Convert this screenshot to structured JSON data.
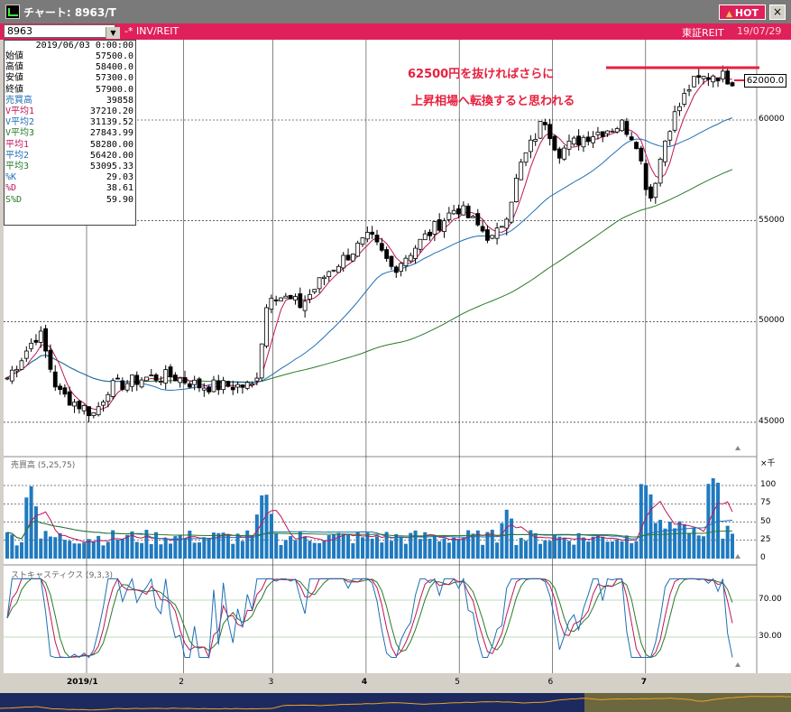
{
  "window": {
    "title": "チャート: 8963/T",
    "hot_label": "HOT",
    "close_label": "×"
  },
  "toolbar": {
    "symbol": "8963",
    "category": "-* INV/REIT",
    "exchange": "東証REIT",
    "date": "19/07/29"
  },
  "info_panel": {
    "datetime": "2019/06/03 0:00:00",
    "rows": [
      {
        "label": "始値",
        "value": "57500.0",
        "color": "#000000"
      },
      {
        "label": "高値",
        "value": "58400.0",
        "color": "#000000"
      },
      {
        "label": "安値",
        "value": "57300.0",
        "color": "#000000"
      },
      {
        "label": "終値",
        "value": "57900.0",
        "color": "#000000"
      },
      {
        "label": "売買高",
        "value": "39858",
        "color": "#1f6fb4"
      },
      {
        "label": "V平均1",
        "value": "37210.20",
        "color": "#c0145a"
      },
      {
        "label": "V平均2",
        "value": "31139.52",
        "color": "#1f6fb4"
      },
      {
        "label": "V平均3",
        "value": "27843.99",
        "color": "#2a7a2a"
      },
      {
        "label": "平均1",
        "value": "58280.00",
        "color": "#c0145a"
      },
      {
        "label": "平均2",
        "value": "56420.00",
        "color": "#1f6fb4"
      },
      {
        "label": "平均3",
        "value": "53095.33",
        "color": "#2a7a2a"
      },
      {
        "label": "%K",
        "value": "29.03",
        "color": "#1f6fb4"
      },
      {
        "label": "%D",
        "value": "38.61",
        "color": "#c0145a"
      },
      {
        "label": "S%D",
        "value": "59.90",
        "color": "#2a7a2a"
      }
    ]
  },
  "annotation": {
    "line1": "62500円を抜ければさらに",
    "line2": "上昇相場へ転換すると思われる",
    "price_tag": "62000.0"
  },
  "price_axis": {
    "labels": [
      "60000",
      "55000",
      "50000",
      "45000"
    ],
    "values": [
      60000,
      55000,
      50000,
      45000
    ]
  },
  "volume_panel": {
    "title": "売買高 (5,25,75)",
    "unit": "×千",
    "labels": [
      "100",
      "75",
      "50",
      "25",
      "0"
    ],
    "values": [
      100,
      75,
      50,
      25,
      0
    ]
  },
  "stoch_panel": {
    "title": "ストキャスティクス (9,3,3)",
    "labels": [
      "70.00",
      "30.00"
    ],
    "values": [
      70,
      30
    ]
  },
  "x_axis": {
    "labels": [
      "2019/1",
      "2",
      "3",
      "4",
      "5",
      "6",
      "7"
    ],
    "bold": [
      true,
      false,
      false,
      true,
      false,
      false,
      true
    ]
  },
  "colors": {
    "accent": "#e0205a",
    "ma_short": "#c0145a",
    "ma_mid": "#1f6fb4",
    "ma_long": "#2a7a2a",
    "volume_bar": "#1f7ac0",
    "annotation": "#e8203e"
  },
  "chart_data": {
    "type": "candlestick",
    "price_range": [
      44000,
      64000
    ],
    "resistance_level": 62500,
    "price_anchors": [
      {
        "month": 0.0,
        "value": 47200
      },
      {
        "month": 0.35,
        "value": 49500
      },
      {
        "month": 0.55,
        "value": 46500
      },
      {
        "month": 0.95,
        "value": 45400
      },
      {
        "month": 1.1,
        "value": 46700
      },
      {
        "month": 1.5,
        "value": 47200
      },
      {
        "month": 1.8,
        "value": 47300
      },
      {
        "month": 2.1,
        "value": 46800
      },
      {
        "month": 2.7,
        "value": 46800
      },
      {
        "month": 2.85,
        "value": 51500
      },
      {
        "month": 3.2,
        "value": 50800
      },
      {
        "month": 3.5,
        "value": 52500
      },
      {
        "month": 3.95,
        "value": 54200
      },
      {
        "month": 4.2,
        "value": 52600
      },
      {
        "month": 4.6,
        "value": 54400
      },
      {
        "month": 4.9,
        "value": 55700
      },
      {
        "month": 5.3,
        "value": 54000
      },
      {
        "month": 5.45,
        "value": 55500
      },
      {
        "month": 5.6,
        "value": 57800
      },
      {
        "month": 5.85,
        "value": 60100
      },
      {
        "month": 6.0,
        "value": 58400
      },
      {
        "month": 6.3,
        "value": 59200
      },
      {
        "month": 6.7,
        "value": 59800
      },
      {
        "month": 6.85,
        "value": 59000
      },
      {
        "month": 7.0,
        "value": 56000
      },
      {
        "month": 7.2,
        "value": 59600
      },
      {
        "month": 7.45,
        "value": 61800
      },
      {
        "month": 7.7,
        "value": 62300
      },
      {
        "month": 7.9,
        "value": 62000
      }
    ],
    "volume_spikes": [
      {
        "month": 0.25,
        "value": 105
      },
      {
        "month": 2.8,
        "value": 100
      },
      {
        "month": 5.45,
        "value": 70
      },
      {
        "month": 6.95,
        "value": 100
      },
      {
        "month": 7.7,
        "value": 115
      }
    ]
  }
}
